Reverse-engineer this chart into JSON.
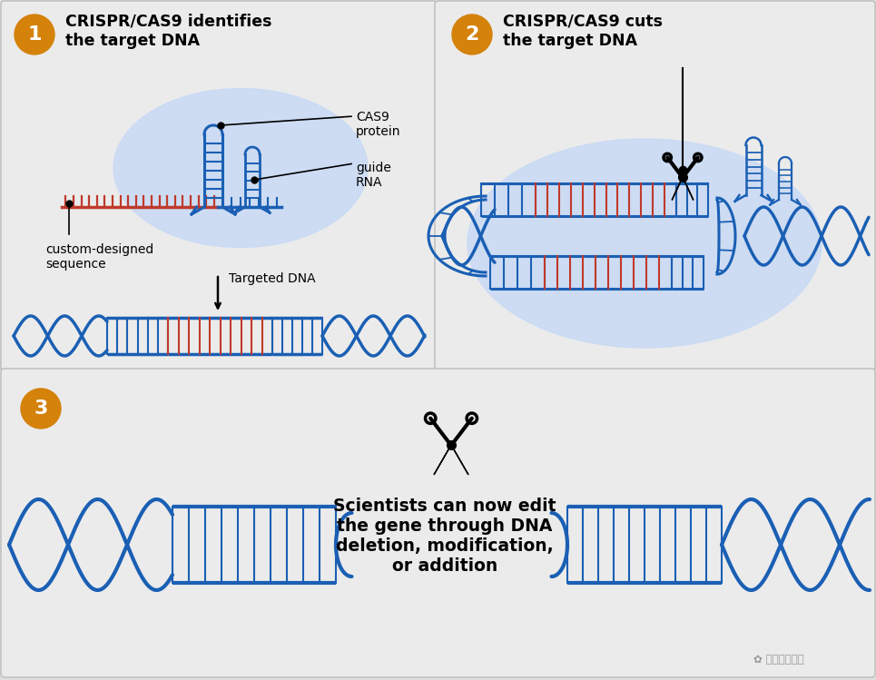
{
  "bg_color": "#e0e0e0",
  "panel_bg": "#ebebeb",
  "dna_blue": "#1a5fb4",
  "dna_red": "#c0392b",
  "blob_color": "#c8daf5",
  "orange": "#d4820a",
  "title1": "CRISPR/CAS9 identifies\nthe target DNA",
  "title2": "CRISPR/CAS9 cuts\nthe target DNA",
  "title3": "Scientists can now edit\nthe gene through DNA\ndeletion, modification,\nor addition",
  "label_cas9": "CAS9\nprotein",
  "label_guide": "guide\nRNA",
  "label_custom": "custom-designed\nsequence",
  "label_targeted": "Targeted DNA",
  "watermark": "国防科技要闻"
}
